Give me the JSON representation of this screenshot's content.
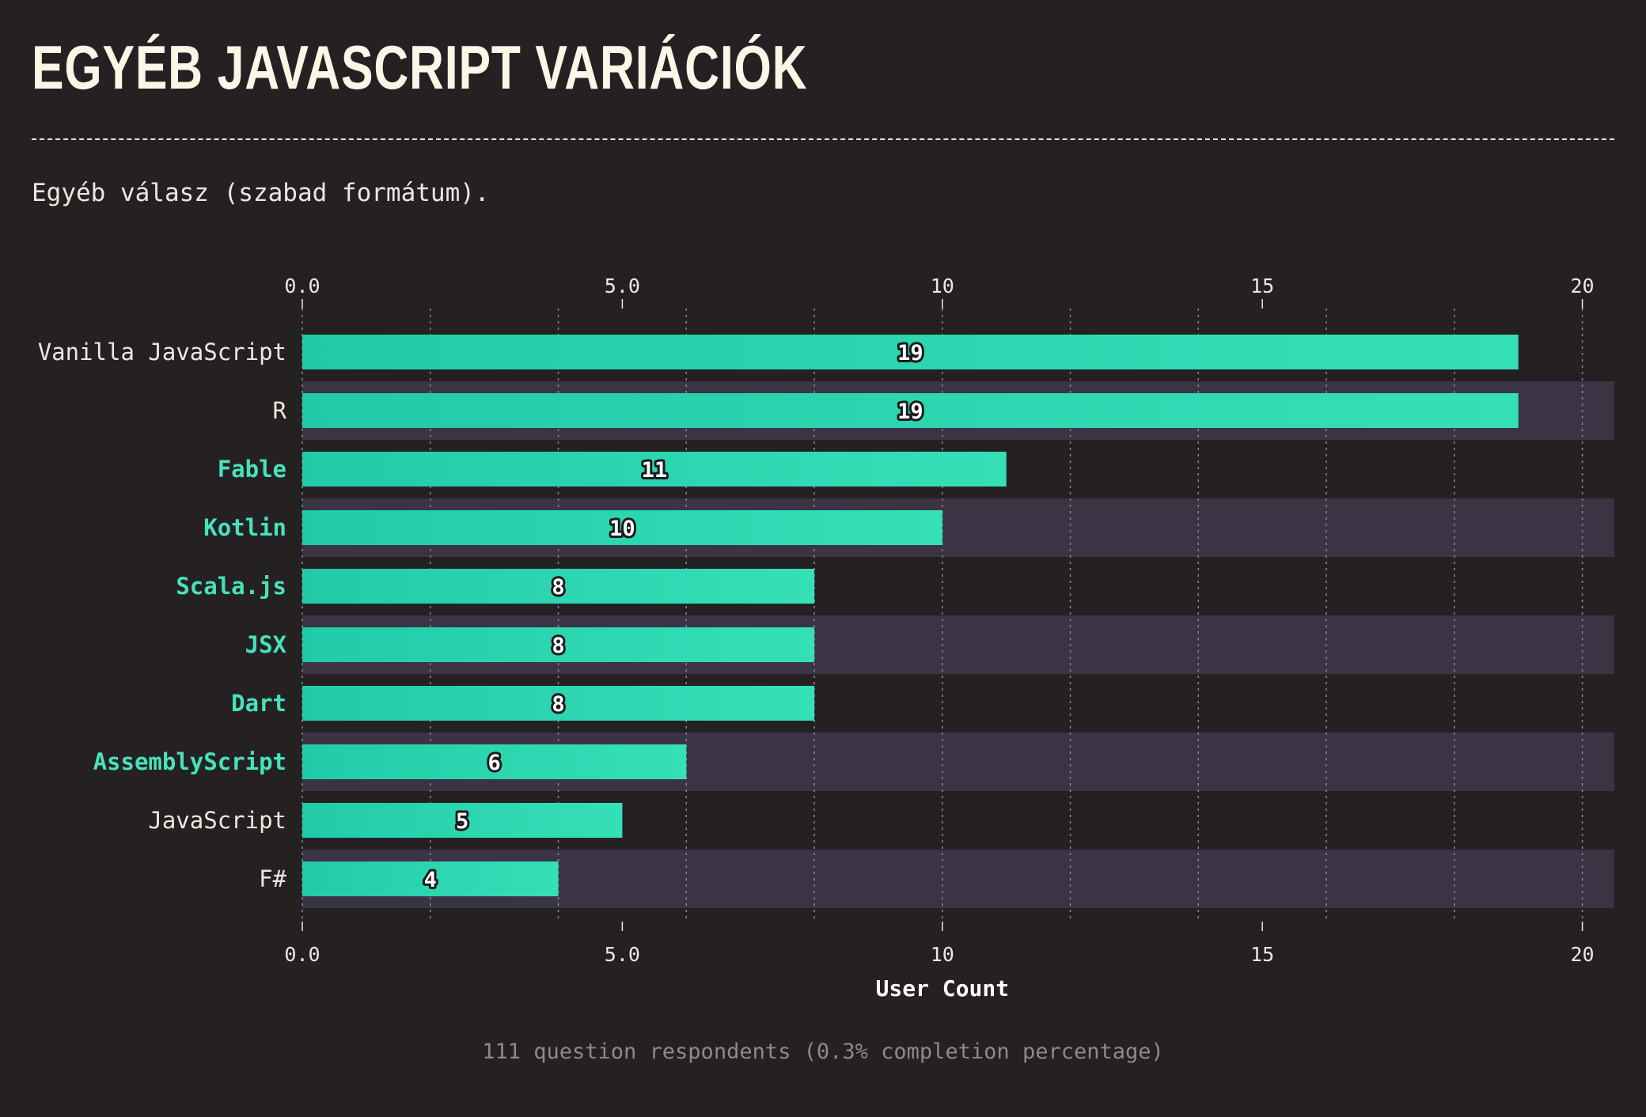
{
  "title": "EGYÉB JAVASCRIPT VARIÁCIÓK",
  "subtitle": "Egyéb válasz (szabad formátum).",
  "footer_note": "111 question respondents (0.3% completion percentage)",
  "colors": {
    "background": "#252123",
    "bar_start": "#22cba8",
    "bar_end": "#35e0b8",
    "stripe": "#3a3445",
    "highlight_label": "#45e3bc",
    "normal_label": "#ece8e0"
  },
  "chart_data": {
    "type": "bar",
    "orientation": "horizontal",
    "categories": [
      "Vanilla JavaScript",
      "R",
      "Fable",
      "Kotlin",
      "Scala.js",
      "JSX",
      "Dart",
      "AssemblyScript",
      "JavaScript",
      "F#"
    ],
    "values": [
      19,
      19,
      11,
      10,
      8,
      8,
      8,
      6,
      5,
      4
    ],
    "highlighted": [
      false,
      false,
      true,
      true,
      true,
      true,
      true,
      true,
      false,
      false
    ],
    "xlabel": "User Count",
    "xlim": [
      0,
      20.5
    ],
    "x_ticks": [
      "0.0",
      "5.0",
      "10",
      "15",
      "20"
    ],
    "x_tick_values": [
      0,
      5,
      10,
      15,
      20
    ],
    "minor_gridlines_every": 2,
    "axis_position": "top-and-bottom",
    "alternating_row_stripes": true
  }
}
